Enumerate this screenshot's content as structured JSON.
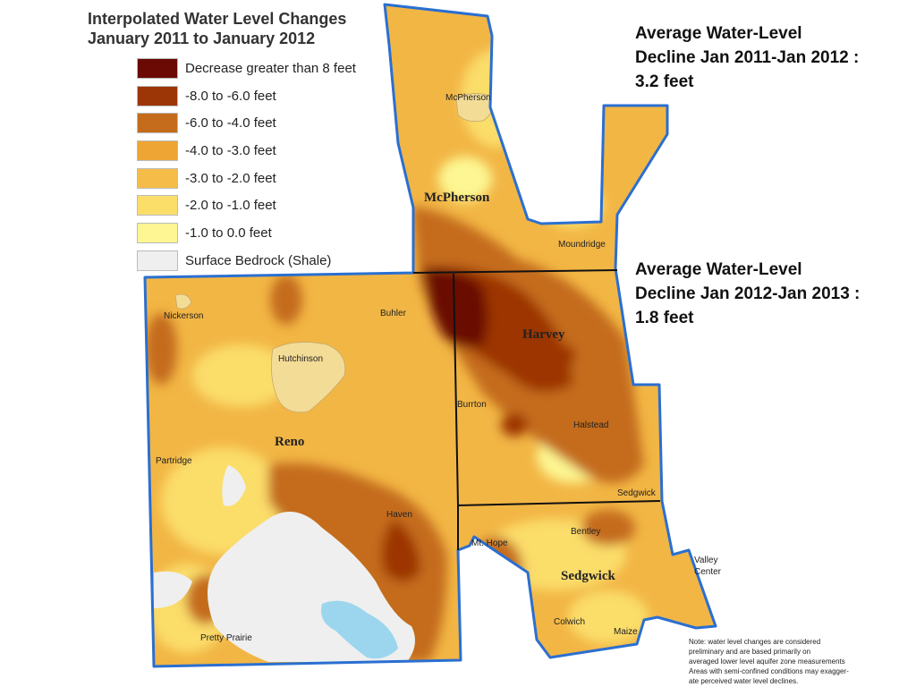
{
  "title": [
    "Interpolated Water Level Changes",
    "January 2011 to January 2012"
  ],
  "legend": [
    {
      "label": "Decrease greater than 8 feet",
      "color": "#6b0a05"
    },
    {
      "label": "-8.0 to -6.0 feet",
      "color": "#9c3606"
    },
    {
      "label": "-6.0 to -4.0 feet",
      "color": "#c46c1c"
    },
    {
      "label": "-4.0 to -3.0 feet",
      "color": "#eea534"
    },
    {
      "label": "-3.0 to -2.0 feet",
      "color": "#f5bd48"
    },
    {
      "label": "-2.0 to -1.0 feet",
      "color": "#fbdd6a"
    },
    {
      "label": "-1.0 to 0.0 feet",
      "color": "#fdf692"
    },
    {
      "label": "Surface Bedrock (Shale)",
      "color": "#efefef"
    }
  ],
  "stats": [
    [
      "Average Water-Level",
      "Decline Jan 2011-Jan 2012 :",
      "3.2 feet"
    ],
    [
      "Average Water-Level",
      "Decline Jan 2012-Jan 2013 :",
      "1.8 feet"
    ]
  ],
  "counties": {
    "mcpherson": "McPherson",
    "harvey": "Harvey",
    "reno": "Reno",
    "sedgwick": "Sedgwick"
  },
  "towns": {
    "mcpherson": "McPherson",
    "moundridge": "Moundridge",
    "nickerson": "Nickerson",
    "buhler": "Buhler",
    "hutchinson": "Hutchinson",
    "burrton": "Burrton",
    "halstead": "Halstead",
    "partridge": "Partridge",
    "haven": "Haven",
    "sedgwick": "Sedgwick",
    "bentley": "Bentley",
    "mt_hope": "Mt. Hope",
    "valley_center": [
      "Valley",
      "Center"
    ],
    "colwich": "Colwich",
    "maize": "Maize",
    "pretty_prairie": "Pretty Prairie"
  },
  "note": [
    "Note: water level changes are considered",
    "preliminary and are based primarily on",
    "averaged lower level aquifer zone measurements",
    "Areas with semi-confined conditions may exagger-",
    "ate perceived  water level declines."
  ],
  "colors": {
    "boundary": "#2a6fd1",
    "water": "#9cd6ee",
    "urban": "#f3dc96"
  }
}
